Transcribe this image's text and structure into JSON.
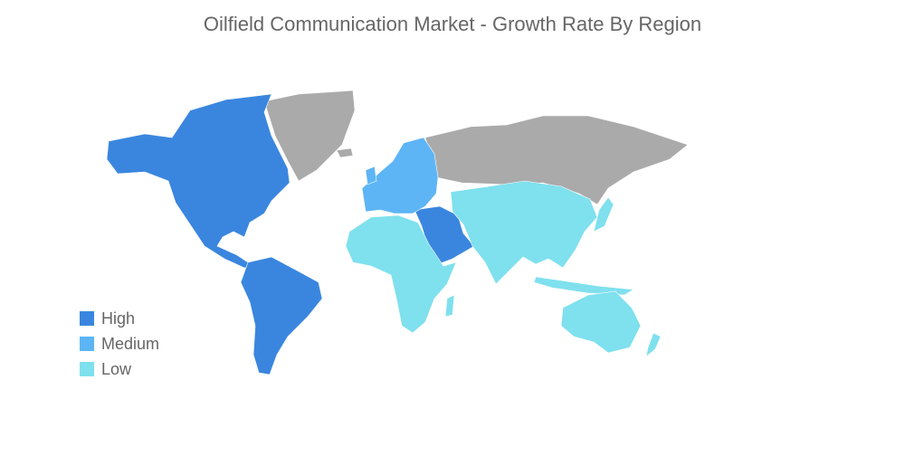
{
  "chart_data": {
    "type": "choropleth",
    "title": "Oilfield Communication Market - Growth Rate By Region",
    "legend": [
      {
        "name": "High",
        "color": "#3a86df"
      },
      {
        "name": "Medium",
        "color": "#5db5f6"
      },
      {
        "name": "Low",
        "color": "#7fe0ee"
      }
    ]
  }
}
